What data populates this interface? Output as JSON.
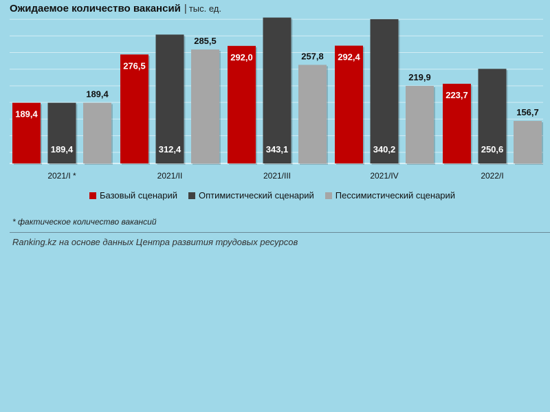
{
  "header": {
    "title": "Ожидаемое количество вакансий",
    "separator": "|",
    "unit": "тыс. ед."
  },
  "chart_data": {
    "type": "bar",
    "categories": [
      "2021/I *",
      "2021/II",
      "2021/III",
      "2021/IV",
      "2022/I"
    ],
    "series": [
      {
        "name": "Базовый сценарий",
        "color": "#c00000",
        "values": [
          189.4,
          276.5,
          292.0,
          292.4,
          223.7
        ]
      },
      {
        "name": "Оптимистический сценарий",
        "color": "#404040",
        "values": [
          189.4,
          312.4,
          343.1,
          340.2,
          250.6
        ]
      },
      {
        "name": "Пессимистический сценарий",
        "color": "#a6a6a6",
        "values": [
          189.4,
          285.5,
          257.8,
          219.9,
          156.7
        ]
      }
    ],
    "value_labels": [
      [
        "189,4",
        "276,5",
        "292,0",
        "292,4",
        "223,7"
      ],
      [
        "189,4",
        "312,4",
        "343,1",
        "340,2",
        "250,6"
      ],
      [
        "189,4",
        "285,5",
        "257,8",
        "219,9",
        "156,7"
      ]
    ],
    "ylim": [
      80,
      350
    ],
    "grid": true,
    "legend_position": "bottom"
  },
  "footnote": "* фактическое количество вакансий",
  "source": "Ranking.kz на основе данных Центра развития трудовых ресурсов"
}
